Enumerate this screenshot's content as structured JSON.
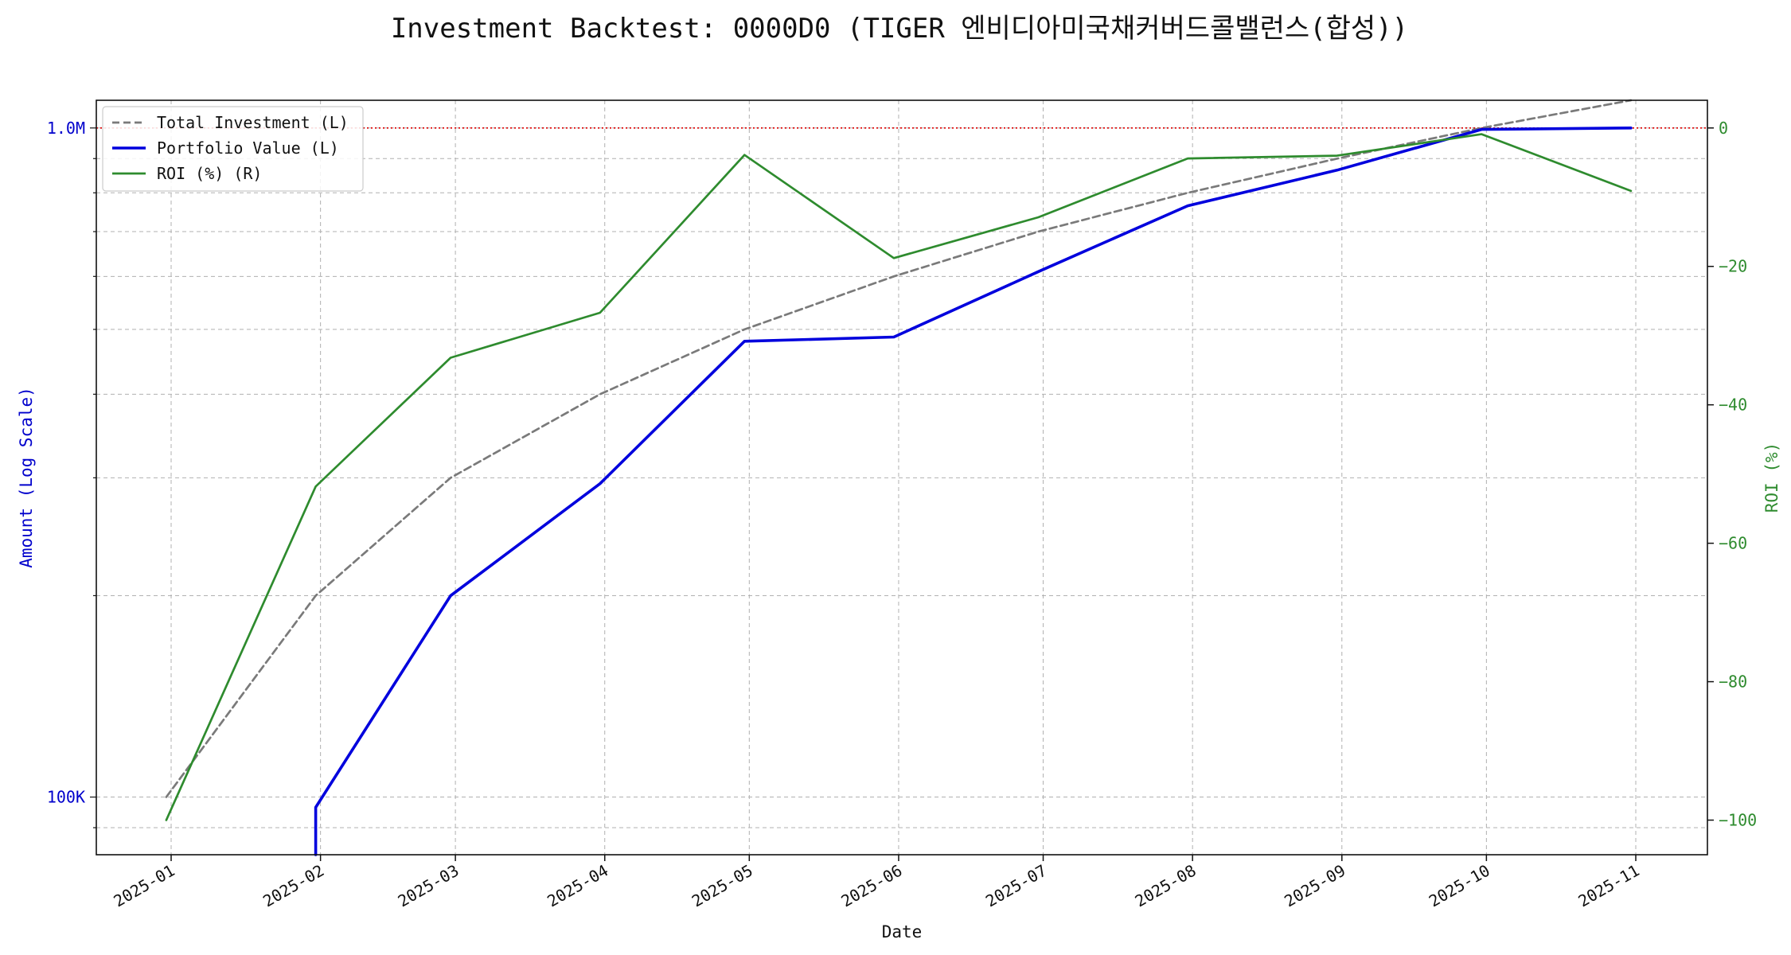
{
  "chart_data": {
    "type": "line",
    "title": "Investment Backtest: 0000D0 (TIGER 엔비디아미국채커버드콜밸런스(합성))",
    "xlabel": "Date",
    "ylabel_left": "Amount (Log Scale)",
    "ylabel_right": "ROI (%)",
    "left_axis_scale": "log",
    "left_ylim": [
      82000,
      1100000
    ],
    "right_ylim": [
      -105,
      4
    ],
    "grid": true,
    "legend_position": "top-left",
    "x_tick_labels": [
      "2025-01",
      "2025-02",
      "2025-03",
      "2025-04",
      "2025-05",
      "2025-06",
      "2025-07",
      "2025-08",
      "2025-09",
      "2025-10",
      "2025-11"
    ],
    "left_tick_labels": [
      {
        "value": 100000,
        "label": "100K"
      },
      {
        "value": 1000000,
        "label": "1.0M"
      }
    ],
    "right_tick_labels": [
      {
        "value": 0,
        "label": "0"
      },
      {
        "value": -20,
        "label": "−20"
      },
      {
        "value": -40,
        "label": "−40"
      },
      {
        "value": -60,
        "label": "−60"
      },
      {
        "value": -80,
        "label": "−80"
      },
      {
        "value": -100,
        "label": "−100"
      }
    ],
    "reference_line": {
      "axis": "right",
      "value": 0,
      "color": "#dd0000",
      "style": "dotted"
    },
    "series": [
      {
        "name": "Total Investment (L)",
        "axis": "left",
        "color": "#7a7a7a",
        "style": "dashed",
        "x": [
          "2024-12-31",
          "2025-01-31",
          "2025-02-28",
          "2025-03-31",
          "2025-04-30",
          "2025-05-31",
          "2025-06-30",
          "2025-07-31",
          "2025-08-31",
          "2025-09-30",
          "2025-10-31"
        ],
        "values": [
          100000,
          200000,
          300000,
          400000,
          500000,
          600000,
          700000,
          800000,
          900000,
          1000000,
          1100000
        ]
      },
      {
        "name": "Portfolio Value (L)",
        "axis": "left",
        "color": "#0000dd",
        "style": "solid",
        "x": [
          "2025-01-31",
          "2025-01-31",
          "2025-02-28",
          "2025-03-31",
          "2025-04-30",
          "2025-05-31",
          "2025-06-30",
          "2025-07-31",
          "2025-08-31",
          "2025-09-30",
          "2025-10-31"
        ],
        "values": [
          82000,
          96500,
          200000,
          294000,
          480000,
          487000,
          610000,
          765000,
          865000,
          995000,
          1000000
        ]
      },
      {
        "name": "ROI (%) (R)",
        "axis": "right",
        "color": "#2e8b2e",
        "style": "solid",
        "x": [
          "2024-12-31",
          "2025-01-31",
          "2025-02-28",
          "2025-03-31",
          "2025-04-30",
          "2025-05-31",
          "2025-06-30",
          "2025-07-31",
          "2025-08-31",
          "2025-09-30",
          "2025-10-31"
        ],
        "values": [
          -100,
          -51.8,
          -33.2,
          -26.7,
          -3.9,
          -18.8,
          -12.9,
          -4.4,
          -4.0,
          -0.9,
          -9.1
        ]
      }
    ]
  }
}
